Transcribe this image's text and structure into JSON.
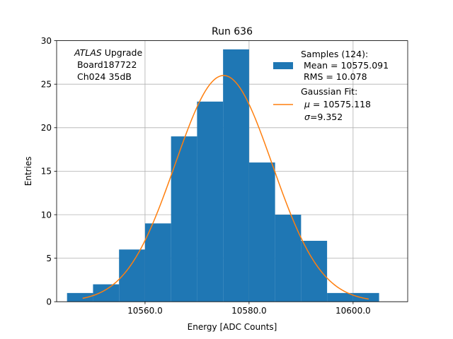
{
  "chart_data": {
    "type": "bar",
    "title": "Run 636",
    "xlabel": "Energy [ADC Counts]",
    "ylabel": "Entries",
    "xlim": [
      10543.0,
      10610.5
    ],
    "ylim": [
      0,
      30
    ],
    "grid": true,
    "bin_edges": [
      10545,
      10550,
      10555,
      10560,
      10565,
      10570,
      10575,
      10580,
      10585,
      10590,
      10595,
      10600,
      10605
    ],
    "values": [
      1,
      2,
      6,
      9,
      19,
      23,
      29,
      16,
      10,
      7,
      1,
      1
    ],
    "x_ticks": [
      10560,
      10580,
      10600
    ],
    "x_tick_labels": [
      "10560.0",
      "10580.0",
      "10600.0"
    ],
    "y_ticks": [
      0,
      5,
      10,
      15,
      20,
      25,
      30
    ],
    "y_tick_labels": [
      "0",
      "5",
      "10",
      "15",
      "20",
      "25",
      "30"
    ],
    "annotation": {
      "italic": "ATLAS",
      "rest": " Upgrade",
      "line2": " Board187722",
      "line3": " Ch024 35dB"
    },
    "fit": {
      "mu": 10575.118,
      "sigma": 9.352,
      "amplitude": 26,
      "x_range": [
        10548,
        10603
      ]
    },
    "legend": {
      "position": "top-right",
      "samples": {
        "line1": "Samples (124):",
        "line2": " Mean = 10575.091",
        "line3": " RMS = 10.078"
      },
      "fit": {
        "line1": "Gaussian Fit:",
        "mu_symbol": "μ",
        "mu_text": " = 10575.118",
        "sigma_symbol": "σ",
        "sigma_text": "=9.352"
      }
    },
    "colors": {
      "bars": "#1f77b4",
      "fit": "#ff7f0e",
      "grid": "#b0b0b0"
    }
  }
}
